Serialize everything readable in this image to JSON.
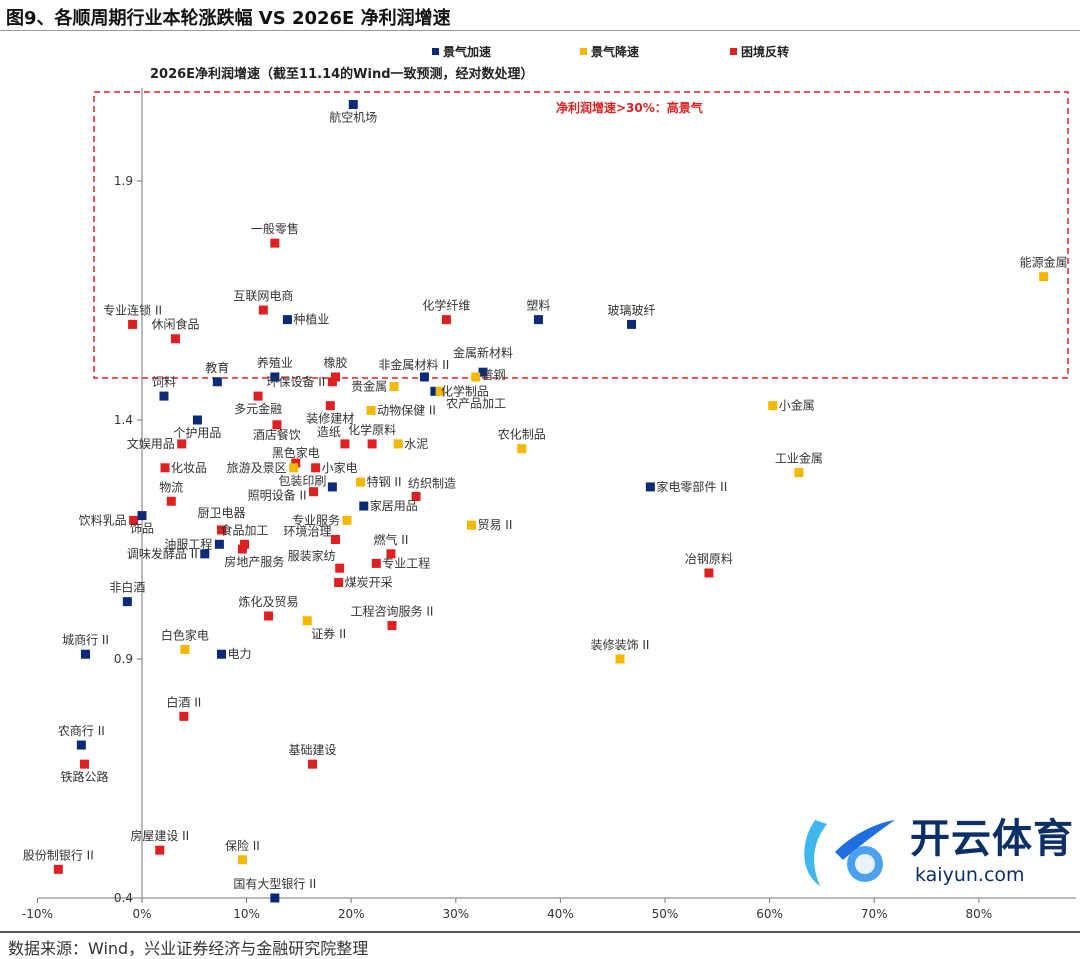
{
  "title": "图9、各顺周期行业本轮涨跌幅  VS 2026E 净利润增速",
  "source": "数据来源：Wind，兴业证券经济与金融研究院整理",
  "watermark": {
    "cn": "开云体育",
    "en": "kaiyun.com"
  },
  "chart_data": {
    "type": "scatter",
    "ylabel": "2026E净利润增速（截至11.14的Wind一致预测，经对数处理）",
    "xlim": [
      -10,
      88
    ],
    "ylim": [
      0.4,
      2.1
    ],
    "x_ticks": [
      "-10%",
      "0%",
      "10%",
      "20%",
      "30%",
      "40%",
      "50%",
      "60%",
      "70%",
      "80%"
    ],
    "x_tick_values": [
      -10,
      0,
      10,
      20,
      30,
      40,
      50,
      60,
      70,
      80
    ],
    "y_ticks": [
      "0.4",
      "0.9",
      "1.4",
      "1.9"
    ],
    "y_tick_values": [
      0.4,
      0.9,
      1.4,
      1.9
    ],
    "grid": false,
    "legend_position": "top",
    "annotation": "净利润增速>30%：高景气",
    "annotation_color": "#e02020",
    "series": [
      {
        "name": "景气加速",
        "color": "#0b2a7a"
      },
      {
        "name": "景气降速",
        "color": "#f5b800"
      },
      {
        "name": "困境反转",
        "color": "#e02020"
      }
    ],
    "points": [
      {
        "label": "航空机场",
        "s": 0,
        "x": 20.2,
        "y": 2.06
      },
      {
        "label": "一般零售",
        "s": 2,
        "x": 12.7,
        "y": 1.77
      },
      {
        "label": "能源金属",
        "s": 1,
        "x": 86.2,
        "y": 1.7
      },
      {
        "label": "专业连锁 II",
        "s": 2,
        "x": -0.9,
        "y": 1.6
      },
      {
        "label": "休闲食品",
        "s": 2,
        "x": 3.2,
        "y": 1.57
      },
      {
        "label": "互联网电商",
        "s": 2,
        "x": 11.6,
        "y": 1.63
      },
      {
        "label": "种植业",
        "s": 0,
        "x": 13.9,
        "y": 1.61
      },
      {
        "label": "化学纤维",
        "s": 2,
        "x": 29.1,
        "y": 1.61
      },
      {
        "label": "塑料",
        "s": 0,
        "x": 37.9,
        "y": 1.61
      },
      {
        "label": "玻璃玻纤",
        "s": 0,
        "x": 46.8,
        "y": 1.6
      },
      {
        "label": "教育",
        "s": 0,
        "x": 7.2,
        "y": 1.48
      },
      {
        "label": "养殖业",
        "s": 0,
        "x": 12.7,
        "y": 1.49
      },
      {
        "label": "橡胶",
        "s": 2,
        "x": 18.5,
        "y": 1.49
      },
      {
        "label": "非金属材料 II",
        "s": 0,
        "x": 27.0,
        "y": 1.49
      },
      {
        "label": "金属新材料",
        "s": 0,
        "x": 32.6,
        "y": 1.5
      },
      {
        "label": "饲料",
        "s": 0,
        "x": 2.1,
        "y": 1.45
      },
      {
        "label": "贵金属",
        "s": 1,
        "x": 24.1,
        "y": 1.47
      },
      {
        "label": "普钢",
        "s": 1,
        "x": 31.9,
        "y": 1.49
      },
      {
        "label": "化学制品",
        "s": 0,
        "x": 28.0,
        "y": 1.46
      },
      {
        "label": "农产品加工",
        "s": 1,
        "x": 28.5,
        "y": 1.46
      },
      {
        "label": "环保设备 II",
        "s": 2,
        "x": 18.2,
        "y": 1.48
      },
      {
        "label": "多元金融",
        "s": 2,
        "x": 11.1,
        "y": 1.45
      },
      {
        "label": "动物保健 II",
        "s": 1,
        "x": 21.9,
        "y": 1.42
      },
      {
        "label": "装修建材",
        "s": 2,
        "x": 18.0,
        "y": 1.43
      },
      {
        "label": "小金属",
        "s": 1,
        "x": 60.3,
        "y": 1.43
      },
      {
        "label": "个护用品",
        "s": 0,
        "x": 5.3,
        "y": 1.4
      },
      {
        "label": "酒店餐饮",
        "s": 2,
        "x": 12.9,
        "y": 1.39
      },
      {
        "label": "造纸",
        "s": 2,
        "x": 19.4,
        "y": 1.35
      },
      {
        "label": "化学原料",
        "s": 2,
        "x": 22.0,
        "y": 1.35
      },
      {
        "label": "水泥",
        "s": 1,
        "x": 24.5,
        "y": 1.35
      },
      {
        "label": "农化制品",
        "s": 1,
        "x": 36.3,
        "y": 1.34
      },
      {
        "label": "文娱用品",
        "s": 2,
        "x": 3.8,
        "y": 1.35
      },
      {
        "label": "黑色家电",
        "s": 2,
        "x": 14.7,
        "y": 1.31
      },
      {
        "label": "旅游及景区",
        "s": 1,
        "x": 14.5,
        "y": 1.3
      },
      {
        "label": "小家电",
        "s": 2,
        "x": 16.6,
        "y": 1.3
      },
      {
        "label": "化妆品",
        "s": 2,
        "x": 2.2,
        "y": 1.3
      },
      {
        "label": "工业金属",
        "s": 1,
        "x": 62.8,
        "y": 1.29
      },
      {
        "label": "家电零部件 II",
        "s": 0,
        "x": 48.6,
        "y": 1.26
      },
      {
        "label": "包装印刷",
        "s": 0,
        "x": 18.2,
        "y": 1.26
      },
      {
        "label": "特钢 II",
        "s": 1,
        "x": 20.9,
        "y": 1.27
      },
      {
        "label": "纺织制造",
        "s": 2,
        "x": 26.2,
        "y": 1.24
      },
      {
        "label": "照明设备 II",
        "s": 2,
        "x": 16.4,
        "y": 1.25
      },
      {
        "label": "物流",
        "s": 2,
        "x": 2.8,
        "y": 1.23
      },
      {
        "label": "家居用品",
        "s": 0,
        "x": 21.2,
        "y": 1.22
      },
      {
        "label": "饮料乳品",
        "s": 2,
        "x": -0.8,
        "y": 1.19
      },
      {
        "label": "饰品",
        "s": 0,
        "x": 0.0,
        "y": 1.2
      },
      {
        "label": "专业服务",
        "s": 1,
        "x": 19.6,
        "y": 1.19
      },
      {
        "label": "贸易 II",
        "s": 1,
        "x": 31.5,
        "y": 1.18
      },
      {
        "label": "厨卫电器",
        "s": 2,
        "x": 7.6,
        "y": 1.17
      },
      {
        "label": "油服工程",
        "s": 0,
        "x": 7.4,
        "y": 1.14
      },
      {
        "label": "食品加工",
        "s": 2,
        "x": 9.8,
        "y": 1.14
      },
      {
        "label": "环境治理",
        "s": 2,
        "x": 18.5,
        "y": 1.15
      },
      {
        "label": "房地产服务",
        "s": 2,
        "x": 9.6,
        "y": 1.13
      },
      {
        "label": "调味发酵品 II",
        "s": 0,
        "x": 6.0,
        "y": 1.12
      },
      {
        "label": "燃气 II",
        "s": 2,
        "x": 23.8,
        "y": 1.12
      },
      {
        "label": "专业工程",
        "s": 2,
        "x": 22.4,
        "y": 1.1
      },
      {
        "label": "服装家纺",
        "s": 2,
        "x": 18.9,
        "y": 1.09
      },
      {
        "label": "煤炭开采",
        "s": 2,
        "x": 18.8,
        "y": 1.06
      },
      {
        "label": "冶钢原料",
        "s": 2,
        "x": 54.2,
        "y": 1.08
      },
      {
        "label": "非白酒",
        "s": 0,
        "x": -1.4,
        "y": 1.02
      },
      {
        "label": "炼化及贸易",
        "s": 2,
        "x": 12.1,
        "y": 0.99
      },
      {
        "label": "证券 II",
        "s": 1,
        "x": 15.8,
        "y": 0.98
      },
      {
        "label": "工程咨询服务 II",
        "s": 2,
        "x": 23.9,
        "y": 0.97
      },
      {
        "label": "城商行 II",
        "s": 0,
        "x": -5.4,
        "y": 0.91
      },
      {
        "label": "白色家电",
        "s": 1,
        "x": 4.1,
        "y": 0.92
      },
      {
        "label": "电力",
        "s": 0,
        "x": 7.6,
        "y": 0.91
      },
      {
        "label": "装修装饰 II",
        "s": 1,
        "x": 45.7,
        "y": 0.9
      },
      {
        "label": "白酒 II",
        "s": 2,
        "x": 4.0,
        "y": 0.78
      },
      {
        "label": "农商行 II",
        "s": 0,
        "x": -5.8,
        "y": 0.72
      },
      {
        "label": "铁路公路",
        "s": 2,
        "x": -5.5,
        "y": 0.68
      },
      {
        "label": "基础建设",
        "s": 2,
        "x": 16.3,
        "y": 0.68
      },
      {
        "label": "房屋建设 II",
        "s": 2,
        "x": 1.7,
        "y": 0.5
      },
      {
        "label": "股份制银行 II",
        "s": 2,
        "x": -8.0,
        "y": 0.46
      },
      {
        "label": "保险 II",
        "s": 1,
        "x": 9.6,
        "y": 0.48
      },
      {
        "label": "国有大型银行 II",
        "s": 0,
        "x": 12.7,
        "y": 0.4
      }
    ]
  }
}
